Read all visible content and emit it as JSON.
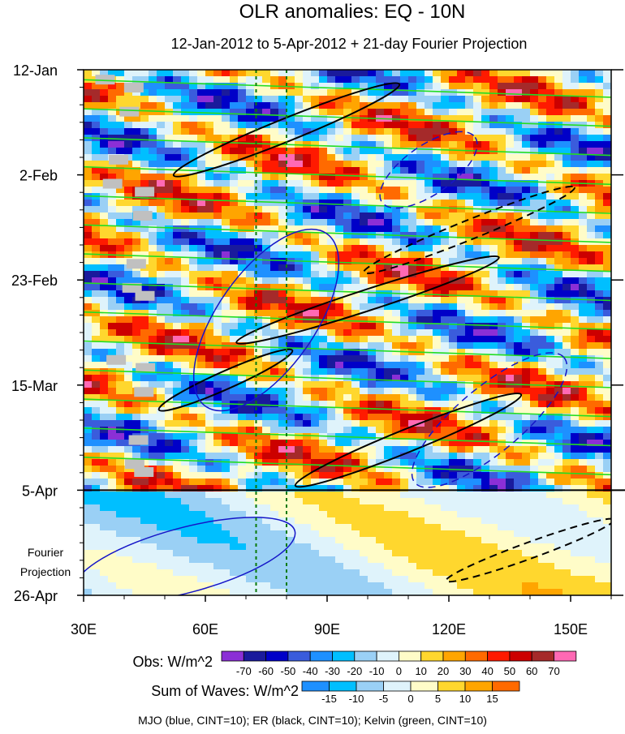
{
  "chart_data": {
    "type": "heatmap",
    "title": "OLR anomalies: EQ - 10N",
    "subtitle": "12-Jan-2012 to 5-Apr-2012 + 21-day Fourier Projection",
    "x": {
      "range": [
        30,
        160
      ],
      "ticks": [
        {
          "value": 30,
          "label": "30E"
        },
        {
          "value": 60,
          "label": "60E"
        },
        {
          "value": 90,
          "label": "90E"
        },
        {
          "value": 120,
          "label": "120E"
        },
        {
          "value": 150,
          "label": "150E"
        }
      ]
    },
    "y": {
      "range_days": [
        0,
        105
      ],
      "ticks": [
        {
          "day": 0,
          "label": "12-Jan"
        },
        {
          "day": 21,
          "label": "2-Feb"
        },
        {
          "day": 42,
          "label": "23-Feb"
        },
        {
          "day": 63,
          "label": "15-Mar"
        },
        {
          "day": 84,
          "label": "5-Apr"
        },
        {
          "day": 105,
          "label": "26-Apr"
        }
      ],
      "projection_label": [
        "Fourier",
        "Projection"
      ],
      "obs_end_day": 84
    },
    "reference_longitudes": [
      72.5,
      80
    ],
    "obs_colorbar": {
      "title": "Obs: W/m^2",
      "levels": [
        -70,
        -60,
        -50,
        -40,
        -30,
        -20,
        -10,
        0,
        10,
        20,
        30,
        40,
        50,
        60,
        70
      ],
      "colors": [
        "#8b2fd6",
        "#1a1a9c",
        "#0000c8",
        "#3a5cdc",
        "#1e90ff",
        "#00bfff",
        "#9ad0f5",
        "#dff3fb",
        "#fffcc8",
        "#ffd72e",
        "#ffa500",
        "#ff6a00",
        "#ff1a00",
        "#cc0000",
        "#a52a2a",
        "#ff69b4"
      ]
    },
    "waves_colorbar": {
      "title": "Sum of Waves: W/m^2",
      "levels": [
        -15,
        -10,
        -5,
        0,
        5,
        10,
        15
      ],
      "colors": [
        "#1e90ff",
        "#00bfff",
        "#9ad0f5",
        "#dff3fb",
        "#fffcc8",
        "#ffd72e",
        "#ffa500",
        "#ff6a00"
      ]
    },
    "footer": "MJO (blue, CINT=10); ER (black, CINT=10); Kelvin (green, CINT=10)",
    "contour_colors": {
      "mjo": "#1515c8",
      "er": "#000000",
      "kelvin": "#22dd22",
      "reference": "#0a7a0a"
    },
    "missing_color": "#c0c0c0"
  }
}
